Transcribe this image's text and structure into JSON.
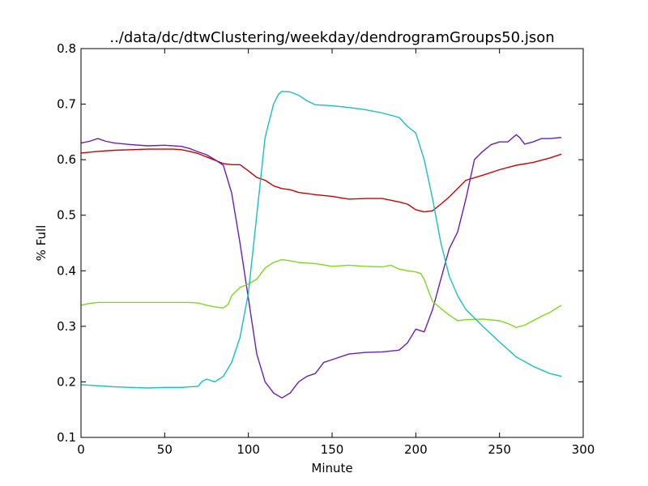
{
  "chart_data": {
    "type": "line",
    "title": "../data/dc/dtwClustering/weekday/dendrogramGroups50.json",
    "xlabel": "Minute",
    "ylabel": "% Full",
    "xlim": [
      0,
      300
    ],
    "ylim": [
      0.1,
      0.8
    ],
    "xticks": [
      0,
      50,
      100,
      150,
      200,
      250,
      300
    ],
    "yticks": [
      0.1,
      0.2,
      0.3,
      0.4,
      0.5,
      0.6,
      0.7,
      0.8
    ],
    "xtick_labels": [
      "0",
      "50",
      "100",
      "150",
      "200",
      "250",
      "300"
    ],
    "ytick_labels": [
      "0.1",
      "0.2",
      "0.3",
      "0.4",
      "0.5",
      "0.6",
      "0.7",
      "0.8"
    ],
    "grid": false,
    "series": [
      {
        "color": "#cc0000",
        "x": [
          0,
          10,
          20,
          30,
          40,
          50,
          55,
          60,
          65,
          70,
          75,
          80,
          85,
          90,
          95,
          100,
          105,
          110,
          115,
          120,
          125,
          130,
          140,
          150,
          160,
          170,
          180,
          190,
          195,
          200,
          205,
          210,
          215,
          220,
          225,
          230,
          240,
          250,
          260,
          270,
          280,
          287
        ],
        "y": [
          0.612,
          0.615,
          0.617,
          0.618,
          0.619,
          0.619,
          0.619,
          0.618,
          0.615,
          0.611,
          0.605,
          0.599,
          0.593,
          0.591,
          0.591,
          0.58,
          0.568,
          0.563,
          0.553,
          0.548,
          0.546,
          0.541,
          0.537,
          0.534,
          0.529,
          0.53,
          0.53,
          0.524,
          0.52,
          0.51,
          0.506,
          0.508,
          0.52,
          0.533,
          0.548,
          0.563,
          0.572,
          0.582,
          0.59,
          0.595,
          0.603,
          0.61
        ]
      },
      {
        "color": "#6a1eb8",
        "x": [
          0,
          5,
          10,
          15,
          20,
          30,
          40,
          50,
          60,
          65,
          70,
          75,
          80,
          85,
          90,
          95,
          100,
          105,
          110,
          115,
          120,
          125,
          130,
          135,
          140,
          145,
          150,
          160,
          170,
          180,
          190,
          195,
          200,
          205,
          210,
          215,
          220,
          225,
          230,
          235,
          240,
          245,
          250,
          255,
          260,
          262,
          265,
          270,
          275,
          280,
          287
        ],
        "y": [
          0.63,
          0.633,
          0.638,
          0.633,
          0.63,
          0.627,
          0.625,
          0.626,
          0.624,
          0.62,
          0.614,
          0.609,
          0.6,
          0.59,
          0.54,
          0.45,
          0.35,
          0.25,
          0.2,
          0.18,
          0.171,
          0.18,
          0.2,
          0.21,
          0.215,
          0.235,
          0.24,
          0.25,
          0.253,
          0.254,
          0.257,
          0.27,
          0.295,
          0.29,
          0.33,
          0.385,
          0.44,
          0.47,
          0.53,
          0.6,
          0.615,
          0.627,
          0.632,
          0.632,
          0.645,
          0.64,
          0.628,
          0.632,
          0.638,
          0.638,
          0.64
        ]
      },
      {
        "color": "#7fd81a",
        "x": [
          0,
          5,
          10,
          20,
          30,
          40,
          50,
          60,
          65,
          70,
          75,
          80,
          85,
          88,
          90,
          95,
          100,
          105,
          110,
          115,
          120,
          125,
          130,
          140,
          150,
          160,
          170,
          180,
          185,
          190,
          195,
          200,
          203,
          205,
          208,
          210,
          215,
          220,
          225,
          230,
          240,
          250,
          255,
          260,
          265,
          270,
          275,
          280,
          287
        ],
        "y": [
          0.338,
          0.341,
          0.343,
          0.343,
          0.343,
          0.343,
          0.343,
          0.343,
          0.343,
          0.342,
          0.338,
          0.335,
          0.333,
          0.34,
          0.355,
          0.37,
          0.376,
          0.385,
          0.405,
          0.415,
          0.42,
          0.418,
          0.415,
          0.413,
          0.408,
          0.41,
          0.408,
          0.407,
          0.41,
          0.403,
          0.4,
          0.398,
          0.395,
          0.385,
          0.36,
          0.345,
          0.332,
          0.32,
          0.31,
          0.312,
          0.313,
          0.31,
          0.305,
          0.298,
          0.302,
          0.31,
          0.318,
          0.325,
          0.338
        ]
      },
      {
        "color": "#17bfbf",
        "x": [
          0,
          10,
          20,
          30,
          40,
          50,
          60,
          65,
          70,
          72,
          75,
          80,
          85,
          90,
          95,
          100,
          105,
          110,
          115,
          118,
          120,
          125,
          130,
          135,
          140,
          150,
          160,
          170,
          180,
          190,
          195,
          200,
          205,
          210,
          215,
          220,
          225,
          230,
          240,
          250,
          260,
          270,
          280,
          287
        ],
        "y": [
          0.195,
          0.193,
          0.191,
          0.19,
          0.189,
          0.19,
          0.19,
          0.191,
          0.192,
          0.2,
          0.205,
          0.2,
          0.21,
          0.235,
          0.28,
          0.36,
          0.5,
          0.64,
          0.7,
          0.718,
          0.723,
          0.722,
          0.716,
          0.706,
          0.699,
          0.697,
          0.694,
          0.69,
          0.684,
          0.676,
          0.66,
          0.648,
          0.6,
          0.53,
          0.45,
          0.39,
          0.355,
          0.33,
          0.3,
          0.272,
          0.245,
          0.228,
          0.215,
          0.21
        ]
      }
    ]
  }
}
